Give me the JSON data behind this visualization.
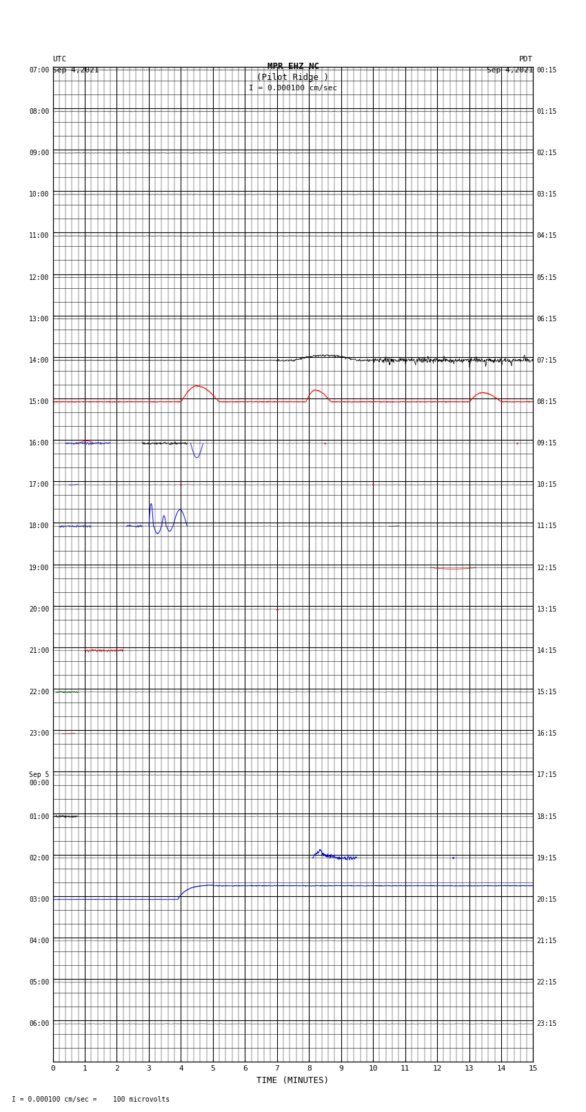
{
  "title_line1": "MPR EHZ NC",
  "title_line2": "(Pilot Ridge )",
  "title_line3": "I = 0.000100 cm/sec",
  "left_header_label": "UTC",
  "left_header_date": "Sep 4,2021",
  "right_header_label": "PDT",
  "right_header_date": "Sep 4,2021",
  "xlabel": "TIME (MINUTES)",
  "footer": "I = 0.000100 cm/sec =    100 microvolts",
  "left_yticks_labels": [
    "07:00",
    "08:00",
    "09:00",
    "10:00",
    "11:00",
    "12:00",
    "13:00",
    "14:00",
    "15:00",
    "16:00",
    "17:00",
    "18:00",
    "19:00",
    "20:00",
    "21:00",
    "22:00",
    "23:00",
    "Sep 5\n00:00",
    "01:00",
    "02:00",
    "03:00",
    "04:00",
    "05:00",
    "06:00"
  ],
  "right_yticks_labels": [
    "00:15",
    "01:15",
    "02:15",
    "03:15",
    "04:15",
    "05:15",
    "06:15",
    "07:15",
    "08:15",
    "09:15",
    "10:15",
    "11:15",
    "12:15",
    "13:15",
    "14:15",
    "15:15",
    "16:15",
    "17:15",
    "18:15",
    "19:15",
    "20:15",
    "21:15",
    "22:15",
    "23:15"
  ],
  "n_rows": 24,
  "n_cols": 15,
  "subrows": 3,
  "bg_color": "#ffffff",
  "grid_color": "#000000",
  "trace_color_black": "#000000",
  "trace_color_red": "#ff0000",
  "trace_color_blue": "#0000dd",
  "trace_color_green": "#008000"
}
